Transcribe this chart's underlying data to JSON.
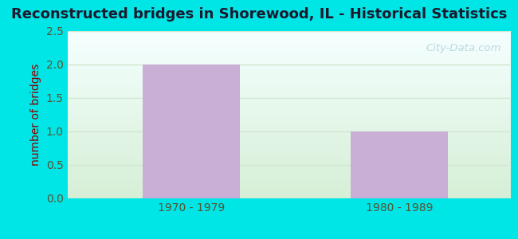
{
  "title": "Reconstructed bridges in Shorewood, IL - Historical Statistics",
  "categories": [
    "1970 - 1979",
    "1980 - 1989"
  ],
  "values": [
    2,
    1
  ],
  "bar_color": "#c9aed6",
  "ylabel": "number of bridges",
  "ylim": [
    0,
    2.5
  ],
  "yticks": [
    0,
    0.5,
    1,
    1.5,
    2,
    2.5
  ],
  "title_fontsize": 13,
  "ylabel_fontsize": 10,
  "tick_fontsize": 10,
  "bg_outer": "#00e5e5",
  "bg_plot_bottom": "#d6efd6",
  "bg_plot_top": "#f5ffff",
  "grid_color": "#d0e8d0",
  "axis_label_color": "#8b0000",
  "tick_label_color": "#555533",
  "watermark": "City-Data.com",
  "bar_positions": [
    0.28,
    0.75
  ],
  "bar_width": 0.22
}
